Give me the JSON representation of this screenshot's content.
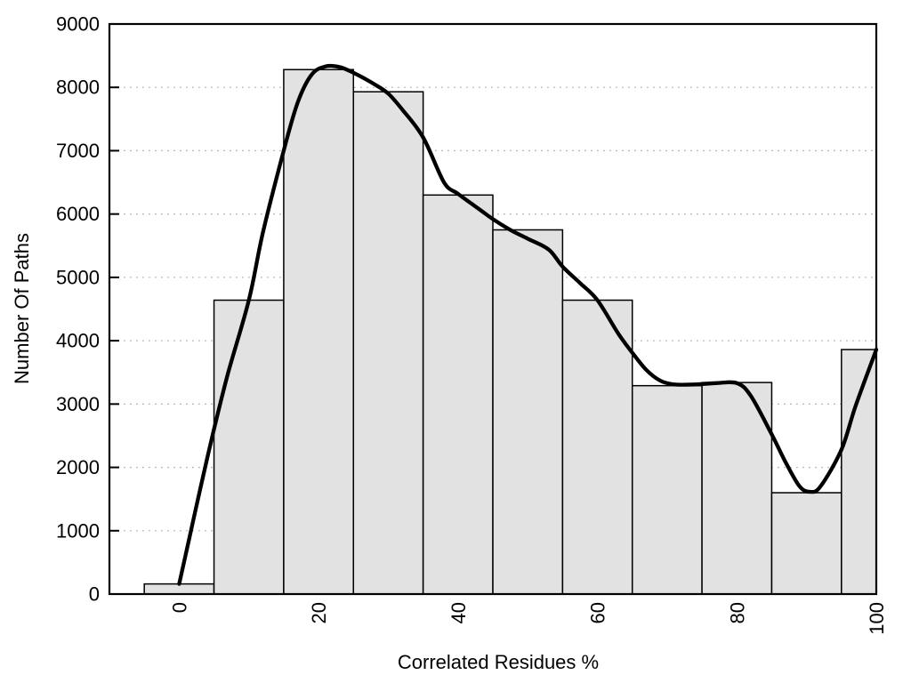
{
  "chart_data": {
    "type": "bar",
    "subtype": "histogram-with-smooth-curve",
    "title": "",
    "xlabel": "Correlated Residues %",
    "ylabel": "Number Of Paths",
    "xlim": [
      -10,
      100
    ],
    "ylim": [
      0,
      9000
    ],
    "x_tick_values": [
      0,
      20,
      40,
      60,
      80,
      100
    ],
    "x_tick_labels": [
      "0",
      "20",
      "40",
      "60",
      "80",
      "100"
    ],
    "x_tick_rotation_deg": -90,
    "y_tick_values": [
      0,
      1000,
      2000,
      3000,
      4000,
      5000,
      6000,
      7000,
      8000,
      9000
    ],
    "y_tick_labels": [
      "0",
      "1000",
      "2000",
      "3000",
      "4000",
      "5000",
      "6000",
      "7000",
      "8000",
      "9000"
    ],
    "grid": "horizontal-dotted",
    "legend": "none",
    "bin_width": 10,
    "categories": [
      0,
      10,
      20,
      30,
      40,
      50,
      60,
      70,
      80,
      90,
      100
    ],
    "values": [
      160,
      4640,
      8280,
      7930,
      6300,
      5750,
      4640,
      3290,
      3340,
      1600,
      3860
    ],
    "bars_clipped_to_xlim": true,
    "series": [
      {
        "name": "paths-histogram",
        "type": "bar",
        "values": [
          160,
          4640,
          8280,
          7930,
          6300,
          5750,
          4640,
          3290,
          3340,
          1600,
          3860
        ]
      },
      {
        "name": "smoothed-curve",
        "type": "line",
        "points": [
          [
            0,
            160
          ],
          [
            1.5,
            900
          ],
          [
            3,
            1650
          ],
          [
            5,
            2600
          ],
          [
            7,
            3480
          ],
          [
            10,
            4640
          ],
          [
            12,
            5700
          ],
          [
            15,
            7000
          ],
          [
            17,
            7760
          ],
          [
            19,
            8200
          ],
          [
            21,
            8330
          ],
          [
            23,
            8320
          ],
          [
            25,
            8230
          ],
          [
            28,
            8050
          ],
          [
            30,
            7900
          ],
          [
            32,
            7650
          ],
          [
            35,
            7210
          ],
          [
            38,
            6500
          ],
          [
            40,
            6320
          ],
          [
            43,
            6080
          ],
          [
            45,
            5920
          ],
          [
            47.5,
            5750
          ],
          [
            50,
            5610
          ],
          [
            53,
            5440
          ],
          [
            55,
            5170
          ],
          [
            57.5,
            4910
          ],
          [
            60,
            4640
          ],
          [
            63,
            4110
          ],
          [
            65,
            3810
          ],
          [
            67,
            3540
          ],
          [
            69,
            3370
          ],
          [
            71,
            3310
          ],
          [
            74,
            3310
          ],
          [
            77,
            3330
          ],
          [
            80,
            3330
          ],
          [
            82,
            3130
          ],
          [
            85,
            2520
          ],
          [
            87,
            2080
          ],
          [
            89,
            1700
          ],
          [
            90.5,
            1615
          ],
          [
            92,
            1700
          ],
          [
            95,
            2280
          ],
          [
            97,
            2960
          ],
          [
            100,
            3860
          ]
        ]
      }
    ],
    "colors": {
      "background": "#ffffff",
      "bar_fill": "#e2e2e2",
      "bar_border": "#000000",
      "curve": "#000000",
      "grid": "#b5b5b5",
      "frame": "#000000",
      "text": "#000000"
    }
  }
}
